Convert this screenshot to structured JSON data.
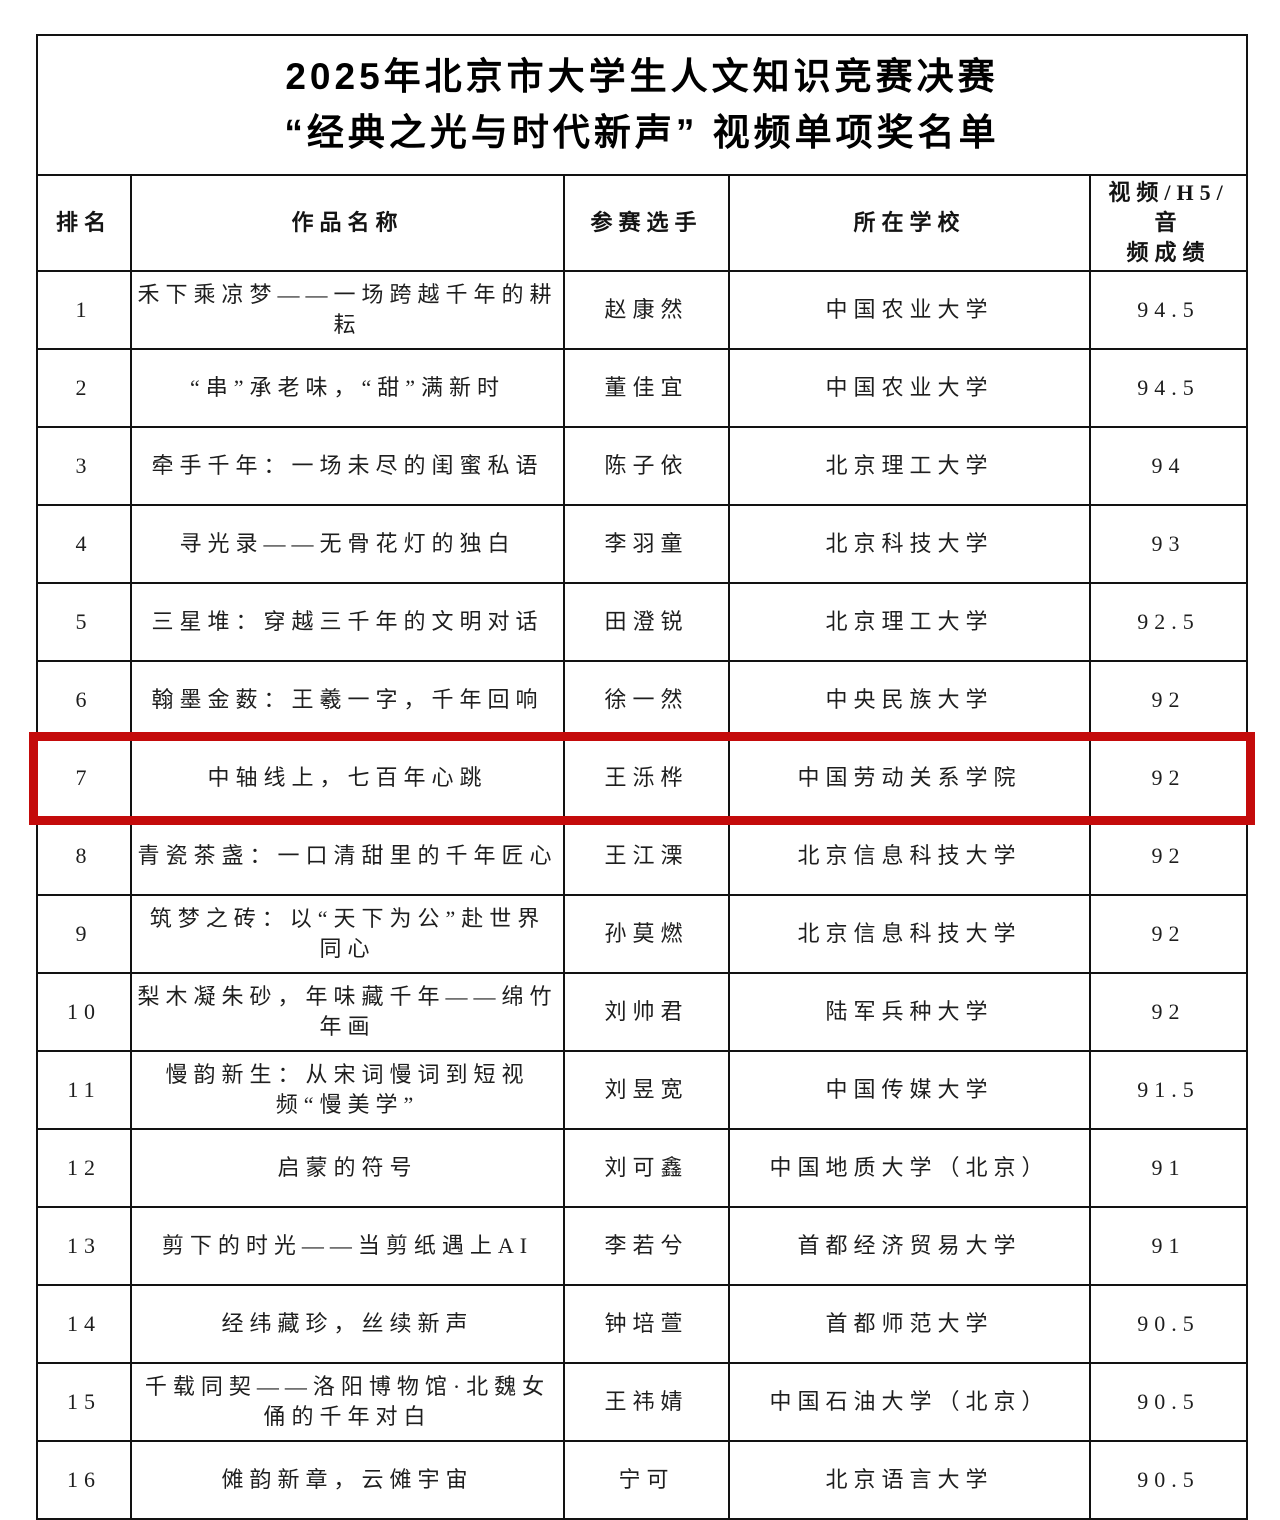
{
  "page": {
    "title_line1": "2025年北京市大学生人文知识竞赛决赛",
    "title_line2": "“经典之光与时代新声” 视频单项奖名单",
    "highlight_color": "#c40b0b"
  },
  "table": {
    "headers": [
      "排名",
      "作品名称",
      "参赛选手",
      "所在学校",
      "视频/H5/音\n频成绩"
    ],
    "rows": [
      {
        "rank": "1",
        "title": "禾下乘凉梦——一场跨越千年的耕耘",
        "contestant": "赵康然",
        "school": "中国农业大学",
        "score": "94.5",
        "highlighted": false
      },
      {
        "rank": "2",
        "title": "“串”承老味，“甜”满新时",
        "contestant": "董佳宜",
        "school": "中国农业大学",
        "score": "94.5",
        "highlighted": false
      },
      {
        "rank": "3",
        "title": "牵手千年：一场未尽的闺蜜私语",
        "contestant": "陈子依",
        "school": "北京理工大学",
        "score": "94",
        "highlighted": false
      },
      {
        "rank": "4",
        "title": "寻光录——无骨花灯的独白",
        "contestant": "李羽童",
        "school": "北京科技大学",
        "score": "93",
        "highlighted": false
      },
      {
        "rank": "5",
        "title": "三星堆：穿越三千年的文明对话",
        "contestant": "田澄锐",
        "school": "北京理工大学",
        "score": "92.5",
        "highlighted": false
      },
      {
        "rank": "6",
        "title": "翰墨金薮：王羲一字，千年回响",
        "contestant": "徐一然",
        "school": "中央民族大学",
        "score": "92",
        "highlighted": false
      },
      {
        "rank": "7",
        "title": "中轴线上，七百年心跳",
        "contestant": "王泺桦",
        "school": "中国劳动关系学院",
        "score": "92",
        "highlighted": true
      },
      {
        "rank": "8",
        "title": "青瓷茶盏：一口清甜里的千年匠心",
        "contestant": "王江溧",
        "school": "北京信息科技大学",
        "score": "92",
        "highlighted": false
      },
      {
        "rank": "9",
        "title": "筑梦之砖：以“天下为公”赴世界同心",
        "contestant": "孙莫燃",
        "school": "北京信息科技大学",
        "score": "92",
        "highlighted": false
      },
      {
        "rank": "10",
        "title": "梨木凝朱砂，年味藏千年——绵竹年画",
        "contestant": "刘帅君",
        "school": "陆军兵种大学",
        "score": "92",
        "highlighted": false
      },
      {
        "rank": "11",
        "title": "慢韵新生：从宋词慢词到短视频“慢美学”",
        "contestant": "刘昱宽",
        "school": "中国传媒大学",
        "score": "91.5",
        "highlighted": false
      },
      {
        "rank": "12",
        "title": "启蒙的符号",
        "contestant": "刘可鑫",
        "school": "中国地质大学（北京）",
        "score": "91",
        "highlighted": false
      },
      {
        "rank": "13",
        "title": "剪下的时光——当剪纸遇上AI",
        "contestant": "李若兮",
        "school": "首都经济贸易大学",
        "score": "91",
        "highlighted": false
      },
      {
        "rank": "14",
        "title": "经纬藏珍，丝续新声",
        "contestant": "钟培萱",
        "school": "首都师范大学",
        "score": "90.5",
        "highlighted": false
      },
      {
        "rank": "15",
        "title": "千载同契——洛阳博物馆·北魏女俑的千年对白",
        "contestant": "王祎婧",
        "school": "中国石油大学（北京）",
        "score": "90.5",
        "highlighted": false
      },
      {
        "rank": "16",
        "title": "傩韵新章，云傩宇宙",
        "contestant": "宁可",
        "school": "北京语言大学",
        "score": "90.5",
        "highlighted": false
      }
    ]
  }
}
